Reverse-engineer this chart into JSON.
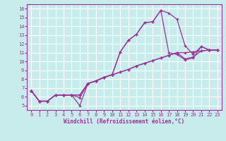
{
  "title": "",
  "xlabel": "Windchill (Refroidissement éolien,°C)",
  "bg_color": "#c8ecec",
  "line_color": "#993399",
  "grid_color": "#ffffff",
  "xlim": [
    -0.5,
    23.5
  ],
  "ylim": [
    4.5,
    16.5
  ],
  "yticks": [
    5,
    6,
    7,
    8,
    9,
    10,
    11,
    12,
    13,
    14,
    15,
    16
  ],
  "xticks": [
    0,
    1,
    2,
    3,
    4,
    5,
    6,
    7,
    8,
    9,
    10,
    11,
    12,
    13,
    14,
    15,
    16,
    17,
    18,
    19,
    20,
    21,
    22,
    23
  ],
  "series": [
    [
      6.7,
      5.5,
      5.5,
      6.2,
      6.2,
      6.2,
      5.9,
      7.5,
      7.8,
      8.2,
      8.5,
      11.1,
      12.4,
      13.1,
      14.4,
      14.5,
      15.8,
      15.5,
      14.8,
      11.8,
      10.8,
      11.7,
      11.3,
      11.3
    ],
    [
      6.7,
      5.5,
      5.5,
      6.2,
      6.2,
      6.2,
      5.0,
      7.5,
      7.8,
      8.2,
      8.5,
      11.1,
      12.4,
      13.1,
      14.4,
      14.5,
      15.8,
      11.0,
      10.8,
      10.2,
      10.4,
      11.7,
      11.3,
      11.3
    ],
    [
      6.7,
      5.5,
      5.5,
      6.2,
      6.2,
      6.2,
      6.2,
      7.5,
      7.8,
      8.2,
      8.5,
      8.8,
      9.1,
      9.5,
      9.8,
      10.1,
      10.4,
      10.7,
      11.0,
      11.0,
      11.1,
      11.2,
      11.3,
      11.3
    ],
    [
      6.7,
      5.5,
      5.5,
      6.2,
      6.2,
      6.2,
      6.2,
      7.5,
      7.8,
      8.2,
      8.5,
      8.8,
      9.1,
      9.5,
      9.8,
      10.1,
      10.4,
      10.7,
      11.0,
      10.3,
      10.5,
      11.2,
      11.3,
      11.3
    ]
  ],
  "tick_fontsize": 5.0,
  "xlabel_fontsize": 5.5,
  "spine_color": "#993399",
  "marker": "+",
  "markersize": 3,
  "linewidth": 0.9
}
